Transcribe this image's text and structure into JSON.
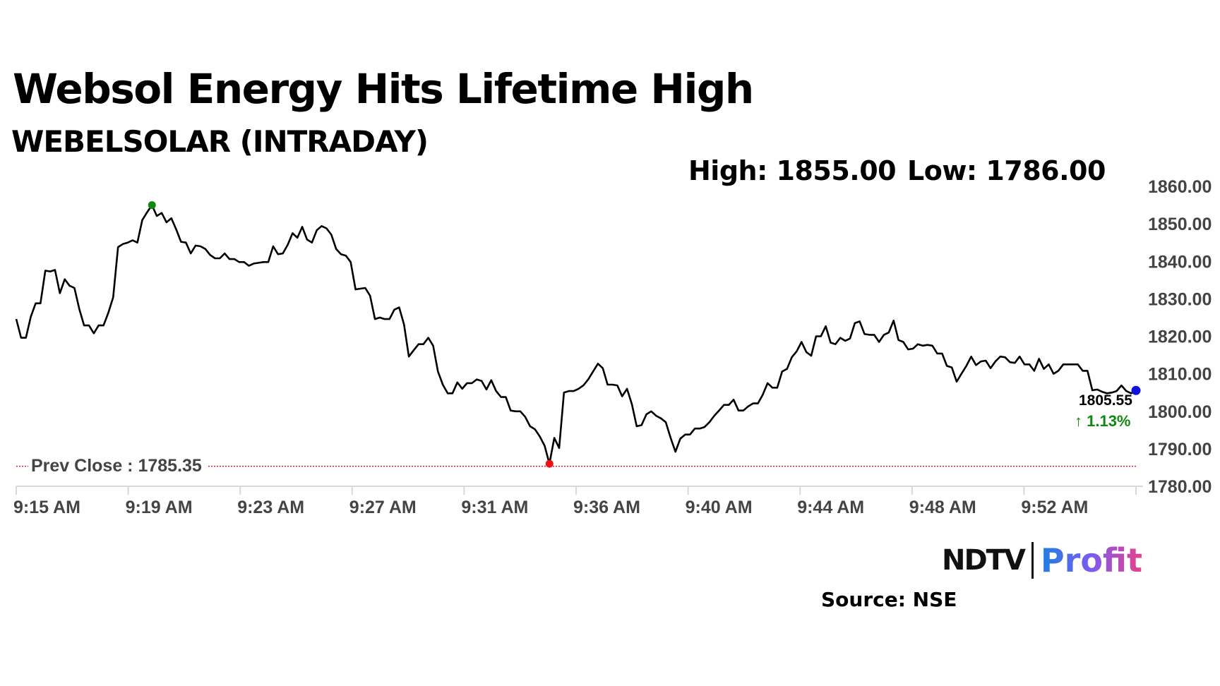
{
  "title": "Websol Energy Hits Lifetime High",
  "subtitle": "WEBELSOLAR (INTRADAY)",
  "high_label": "High: 1855.00",
  "low_label": "Low: 1786.00",
  "prev_close_label": "Prev Close : 1785.35",
  "last_price": "1805.55",
  "change": "↑ 1.13%",
  "source": "Source: NSE",
  "logo": {
    "left": "NDTV",
    "right": "Profit"
  },
  "colors": {
    "line": "#000000",
    "high_dot": "#118811",
    "low_dot": "#ee1111",
    "last_dot": "#1010dd",
    "prev_close": "#dd2222",
    "up": "#118811"
  },
  "chart_data": {
    "type": "line",
    "title": "Websol Energy Hits Lifetime High",
    "subtitle": "WEBELSOLAR (INTRADAY)",
    "ylim": [
      1780,
      1860
    ],
    "yticks": [
      "1780.00",
      "1790.00",
      "1800.00",
      "1810.00",
      "1820.00",
      "1830.00",
      "1840.00",
      "1850.00",
      "1860.00"
    ],
    "ytick_values": [
      1780,
      1790,
      1800,
      1810,
      1820,
      1830,
      1840,
      1850,
      1860
    ],
    "xlim": [
      0,
      40
    ],
    "xticks": [
      {
        "label": "9:15 AM",
        "at": 0
      },
      {
        "label": "9:19 AM",
        "at": 4
      },
      {
        "label": "9:23 AM",
        "at": 8
      },
      {
        "label": "9:27 AM",
        "at": 12
      },
      {
        "label": "9:31 AM",
        "at": 16
      },
      {
        "label": "9:36 AM",
        "at": 20
      },
      {
        "label": "9:40 AM",
        "at": 24
      },
      {
        "label": "9:44 AM",
        "at": 28
      },
      {
        "label": "9:48 AM",
        "at": 32
      },
      {
        "label": "9:52 AM",
        "at": 36
      }
    ],
    "prev_close": 1785.35,
    "high": 1855.0,
    "low": 1786.0,
    "last": 1805.55,
    "values": [
      1824.6,
      1819.6,
      1819.6,
      1825.2,
      1828.8,
      1828.8,
      1837.5,
      1837.3,
      1837.7,
      1831.5,
      1835.2,
      1833.5,
      1832.9,
      1827.3,
      1822.9,
      1822.9,
      1820.8,
      1822.9,
      1822.9,
      1826.3,
      1830.4,
      1843.8,
      1844.6,
      1845,
      1845.6,
      1845,
      1851,
      1853.1,
      1855,
      1852.1,
      1852.9,
      1850.4,
      1851.5,
      1848.5,
      1845.2,
      1845,
      1842.1,
      1844.2,
      1844,
      1843.3,
      1841.7,
      1840.8,
      1840.8,
      1842.1,
      1840.6,
      1840.6,
      1839.8,
      1839.8,
      1838.8,
      1839.4,
      1839.6,
      1839.8,
      1839.8,
      1844,
      1841.9,
      1842.1,
      1844.4,
      1847.5,
      1846.3,
      1849.2,
      1845.8,
      1845,
      1848.3,
      1849.4,
      1848.8,
      1847.1,
      1843.3,
      1841.9,
      1841.5,
      1839.8,
      1832.5,
      1832.7,
      1832.9,
      1830.8,
      1824.6,
      1825,
      1824.6,
      1824.6,
      1827.1,
      1827.7,
      1823.1,
      1814.6,
      1816.3,
      1817.9,
      1817.9,
      1819.6,
      1817.5,
      1810.6,
      1807.1,
      1804.8,
      1804.8,
      1807.7,
      1806,
      1807.5,
      1807.5,
      1808.5,
      1808.1,
      1805.8,
      1808.3,
      1805.4,
      1803.8,
      1803.8,
      1800.2,
      1800,
      1800,
      1798.5,
      1796,
      1795.2,
      1793.3,
      1790.8,
      1786,
      1792.9,
      1790.2,
      1805,
      1805.4,
      1805.4,
      1806,
      1806.9,
      1808.5,
      1810.6,
      1812.7,
      1811.5,
      1807.1,
      1807.1,
      1806.9,
      1804,
      1806,
      1801.9,
      1796,
      1796.3,
      1799.2,
      1800,
      1798.8,
      1798.1,
      1797.1,
      1792.9,
      1789.2,
      1792.7,
      1793.8,
      1793.8,
      1795.4,
      1795.4,
      1795.8,
      1797.1,
      1798.8,
      1800.2,
      1801.7,
      1801.7,
      1803.1,
      1800.2,
      1800.2,
      1801.3,
      1802.1,
      1802.1,
      1804.4,
      1807.5,
      1806.3,
      1806.3,
      1810.6,
      1811.3,
      1814.4,
      1816,
      1818.5,
      1815.8,
      1814.8,
      1820,
      1820,
      1822.7,
      1818.3,
      1817.9,
      1819.6,
      1818.8,
      1819.4,
      1823.5,
      1824,
      1820.6,
      1820.4,
      1820.4,
      1818.5,
      1820.4,
      1821,
      1824.2,
      1819,
      1818.5,
      1816.5,
      1816.7,
      1817.9,
      1817.5,
      1817.7,
      1817.5,
      1815.4,
      1815.4,
      1812.1,
      1811.7,
      1807.9,
      1810,
      1812.1,
      1814.6,
      1812.3,
      1813.3,
      1813.5,
      1811.5,
      1813.3,
      1814.6,
      1814.4,
      1813.1,
      1812.9,
      1814.6,
      1812.5,
      1812.5,
      1810.8,
      1814,
      1811.3,
      1812.5,
      1810,
      1810.8,
      1812.5,
      1812.5,
      1812.5,
      1812.5,
      1810.8,
      1810.8,
      1805.6,
      1805.8,
      1805.2,
      1804.8,
      1805,
      1805.4,
      1806.9,
      1805.4,
      1804.8,
      1805.55
    ]
  }
}
